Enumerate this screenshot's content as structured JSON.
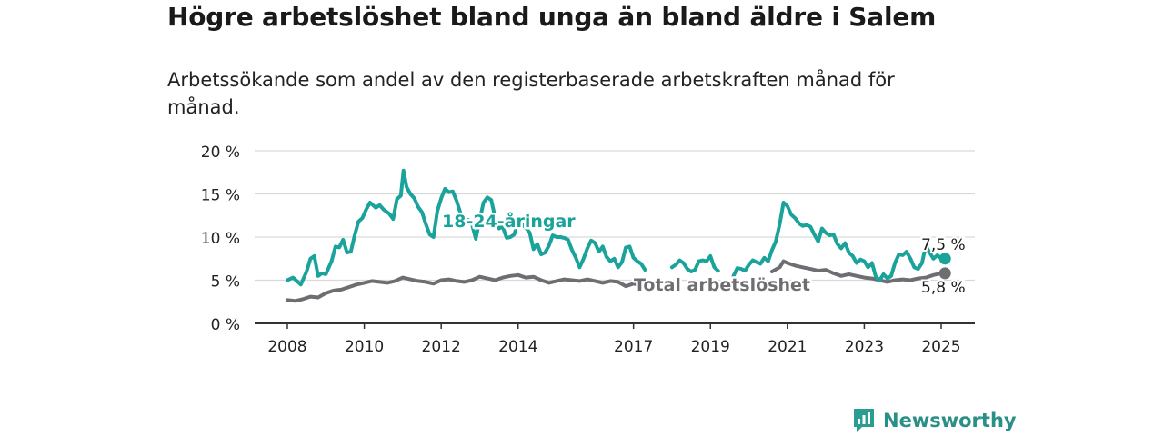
{
  "title": "Högre arbetslöshet bland unga än bland äldre i Salem",
  "subtitle": "Arbetssökande som andel av den registerbaserade arbetskraften månad för månad.",
  "brand": {
    "name": "Newsworthy",
    "color": "#2a9d93"
  },
  "chart_data": {
    "type": "line",
    "ylim": [
      0,
      20
    ],
    "xlim": [
      2008,
      2025.5
    ],
    "y_ticks": [
      0,
      5,
      10,
      15,
      20
    ],
    "y_tick_labels": [
      "0 %",
      "5 %",
      "10 %",
      "15 %",
      "20 %"
    ],
    "x_ticks": [
      2008,
      2010,
      2012,
      2014,
      2017,
      2019,
      2021,
      2023,
      2025
    ],
    "x_tick_labels": [
      "2008",
      "2010",
      "2012",
      "2014",
      "2017",
      "2019",
      "2021",
      "2023",
      "2025"
    ],
    "grid": "horizontal",
    "series": [
      {
        "name": "18-24-åringar",
        "color": "#1aa39a",
        "end_label": "7,5 %",
        "points": [
          [
            2008.0,
            5.0
          ],
          [
            2008.15,
            5.3
          ],
          [
            2008.35,
            4.5
          ],
          [
            2008.5,
            6.0
          ],
          [
            2008.6,
            7.5
          ],
          [
            2008.7,
            7.8
          ],
          [
            2008.8,
            5.5
          ],
          [
            2008.9,
            5.8
          ],
          [
            2009.0,
            5.7
          ],
          [
            2009.15,
            7.2
          ],
          [
            2009.25,
            8.9
          ],
          [
            2009.35,
            8.8
          ],
          [
            2009.45,
            9.7
          ],
          [
            2009.55,
            8.2
          ],
          [
            2009.65,
            8.3
          ],
          [
            2009.75,
            10.2
          ],
          [
            2009.85,
            11.8
          ],
          [
            2009.95,
            12.2
          ],
          [
            2010.05,
            13.2
          ],
          [
            2010.15,
            14.0
          ],
          [
            2010.3,
            13.4
          ],
          [
            2010.4,
            13.7
          ],
          [
            2010.5,
            13.2
          ],
          [
            2010.65,
            12.7
          ],
          [
            2010.75,
            12.1
          ],
          [
            2010.85,
            14.4
          ],
          [
            2010.95,
            14.8
          ],
          [
            2011.02,
            17.7
          ],
          [
            2011.1,
            15.8
          ],
          [
            2011.2,
            15.0
          ],
          [
            2011.3,
            14.5
          ],
          [
            2011.4,
            13.5
          ],
          [
            2011.5,
            12.9
          ],
          [
            2011.6,
            11.5
          ],
          [
            2011.7,
            10.3
          ],
          [
            2011.8,
            10.0
          ],
          [
            2011.9,
            13.0
          ],
          [
            2012.0,
            14.5
          ],
          [
            2012.1,
            15.6
          ],
          [
            2012.2,
            15.2
          ],
          [
            2012.3,
            15.3
          ],
          [
            2012.4,
            14.2
          ],
          [
            2012.5,
            12.8
          ],
          [
            2012.6,
            12.0
          ],
          [
            2012.7,
            12.0
          ],
          [
            2012.8,
            11.5
          ],
          [
            2012.9,
            9.8
          ],
          [
            2013.0,
            12.0
          ],
          [
            2013.1,
            14.0
          ],
          [
            2013.2,
            14.6
          ],
          [
            2013.3,
            14.3
          ],
          [
            2013.4,
            12.3
          ],
          [
            2013.5,
            11.0
          ],
          [
            2013.6,
            11.2
          ],
          [
            2013.7,
            9.9
          ],
          [
            2013.8,
            10.0
          ],
          [
            2013.9,
            10.3
          ],
          [
            2014.0,
            11.8
          ],
          [
            2014.1,
            11.5
          ],
          [
            2014.2,
            11.1
          ],
          [
            2014.3,
            10.5
          ],
          [
            2014.4,
            8.6
          ],
          [
            2014.5,
            9.2
          ],
          [
            2014.6,
            8.0
          ],
          [
            2014.7,
            8.2
          ],
          [
            2014.8,
            9.0
          ],
          [
            2014.9,
            10.2
          ],
          [
            2015.0,
            10.0
          ],
          [
            2015.1,
            10.0
          ],
          [
            2015.2,
            9.9
          ],
          [
            2015.3,
            9.7
          ],
          [
            2015.4,
            8.5
          ],
          [
            2015.5,
            7.6
          ],
          [
            2015.6,
            6.5
          ],
          [
            2015.7,
            7.5
          ],
          [
            2015.8,
            8.7
          ],
          [
            2015.9,
            9.6
          ],
          [
            2016.0,
            9.3
          ],
          [
            2016.1,
            8.3
          ],
          [
            2016.2,
            8.9
          ],
          [
            2016.3,
            7.7
          ],
          [
            2016.4,
            7.2
          ],
          [
            2016.5,
            7.5
          ],
          [
            2016.6,
            6.5
          ],
          [
            2016.7,
            7.1
          ],
          [
            2016.8,
            8.8
          ],
          [
            2016.9,
            8.9
          ],
          [
            2017.0,
            7.6
          ],
          [
            2017.1,
            7.2
          ],
          [
            2017.2,
            6.9
          ],
          [
            2017.3,
            6.2
          ]
        ],
        "points_b": [
          [
            2018.0,
            6.5
          ],
          [
            2018.1,
            6.8
          ],
          [
            2018.2,
            7.3
          ],
          [
            2018.3,
            7.0
          ],
          [
            2018.4,
            6.3
          ],
          [
            2018.5,
            6.0
          ],
          [
            2018.6,
            6.2
          ],
          [
            2018.7,
            7.2
          ],
          [
            2018.8,
            7.3
          ],
          [
            2018.9,
            7.2
          ],
          [
            2019.0,
            7.8
          ],
          [
            2019.1,
            6.5
          ],
          [
            2019.2,
            6.1
          ]
        ],
        "points_c": [
          [
            2019.6,
            5.5
          ],
          [
            2019.7,
            6.4
          ],
          [
            2019.8,
            6.3
          ],
          [
            2019.9,
            6.1
          ],
          [
            2020.0,
            6.8
          ],
          [
            2020.1,
            7.3
          ],
          [
            2020.2,
            7.1
          ],
          [
            2020.3,
            6.9
          ],
          [
            2020.4,
            7.6
          ],
          [
            2020.5,
            7.2
          ],
          [
            2020.6,
            8.5
          ],
          [
            2020.7,
            9.5
          ],
          [
            2020.8,
            11.5
          ],
          [
            2020.9,
            14.0
          ],
          [
            2021.0,
            13.6
          ],
          [
            2021.1,
            12.6
          ],
          [
            2021.2,
            12.2
          ],
          [
            2021.3,
            11.6
          ],
          [
            2021.4,
            11.3
          ],
          [
            2021.5,
            11.4
          ],
          [
            2021.6,
            11.2
          ],
          [
            2021.7,
            10.3
          ],
          [
            2021.8,
            9.5
          ],
          [
            2021.9,
            11.0
          ],
          [
            2022.0,
            10.5
          ],
          [
            2022.1,
            10.2
          ],
          [
            2022.2,
            10.3
          ],
          [
            2022.3,
            9.2
          ],
          [
            2022.4,
            8.7
          ],
          [
            2022.5,
            9.3
          ],
          [
            2022.6,
            8.2
          ],
          [
            2022.7,
            7.8
          ],
          [
            2022.8,
            7.0
          ],
          [
            2022.9,
            7.4
          ],
          [
            2023.0,
            7.2
          ],
          [
            2023.1,
            6.5
          ],
          [
            2023.2,
            7.0
          ],
          [
            2023.3,
            5.4
          ],
          [
            2023.4,
            5.0
          ],
          [
            2023.5,
            5.7
          ],
          [
            2023.6,
            5.2
          ],
          [
            2023.7,
            5.5
          ],
          [
            2023.8,
            7.0
          ],
          [
            2023.9,
            8.0
          ],
          [
            2024.0,
            7.9
          ],
          [
            2024.1,
            8.3
          ],
          [
            2024.2,
            7.5
          ],
          [
            2024.3,
            6.5
          ],
          [
            2024.4,
            6.3
          ],
          [
            2024.5,
            7.0
          ],
          [
            2024.6,
            9.0
          ],
          [
            2024.7,
            8.2
          ],
          [
            2024.8,
            7.5
          ],
          [
            2024.9,
            7.9
          ],
          [
            2025.0,
            7.5
          ],
          [
            2025.1,
            7.5
          ]
        ]
      },
      {
        "name": "Total arbetslöshet",
        "color": "#6e6d72",
        "end_label": "5,8 %",
        "points": [
          [
            2008.0,
            2.7
          ],
          [
            2008.2,
            2.6
          ],
          [
            2008.4,
            2.8
          ],
          [
            2008.6,
            3.1
          ],
          [
            2008.8,
            3.0
          ],
          [
            2009.0,
            3.5
          ],
          [
            2009.2,
            3.8
          ],
          [
            2009.4,
            3.9
          ],
          [
            2009.6,
            4.2
          ],
          [
            2009.8,
            4.5
          ],
          [
            2010.0,
            4.7
          ],
          [
            2010.2,
            4.9
          ],
          [
            2010.4,
            4.8
          ],
          [
            2010.6,
            4.7
          ],
          [
            2010.8,
            4.9
          ],
          [
            2011.0,
            5.3
          ],
          [
            2011.2,
            5.1
          ],
          [
            2011.4,
            4.9
          ],
          [
            2011.6,
            4.8
          ],
          [
            2011.8,
            4.6
          ],
          [
            2012.0,
            5.0
          ],
          [
            2012.2,
            5.1
          ],
          [
            2012.4,
            4.9
          ],
          [
            2012.6,
            4.8
          ],
          [
            2012.8,
            5.0
          ],
          [
            2013.0,
            5.4
          ],
          [
            2013.2,
            5.2
          ],
          [
            2013.4,
            5.0
          ],
          [
            2013.6,
            5.3
          ],
          [
            2013.8,
            5.5
          ],
          [
            2014.0,
            5.6
          ],
          [
            2014.2,
            5.3
          ],
          [
            2014.4,
            5.4
          ],
          [
            2014.6,
            5.0
          ],
          [
            2014.8,
            4.7
          ],
          [
            2015.0,
            4.9
          ],
          [
            2015.2,
            5.1
          ],
          [
            2015.4,
            5.0
          ],
          [
            2015.6,
            4.9
          ],
          [
            2015.8,
            5.1
          ],
          [
            2016.0,
            4.9
          ],
          [
            2016.2,
            4.7
          ],
          [
            2016.4,
            4.9
          ],
          [
            2016.6,
            4.8
          ],
          [
            2016.8,
            4.3
          ],
          [
            2017.0,
            4.6
          ],
          [
            2017.2,
            4.4
          ],
          [
            2017.4,
            4.2
          ]
        ],
        "points_c": [
          [
            2020.6,
            6.0
          ],
          [
            2020.8,
            6.5
          ],
          [
            2020.9,
            7.2
          ],
          [
            2021.0,
            7.0
          ],
          [
            2021.2,
            6.7
          ],
          [
            2021.4,
            6.5
          ],
          [
            2021.6,
            6.3
          ],
          [
            2021.8,
            6.1
          ],
          [
            2022.0,
            6.2
          ],
          [
            2022.2,
            5.8
          ],
          [
            2022.4,
            5.5
          ],
          [
            2022.6,
            5.7
          ],
          [
            2022.8,
            5.5
          ],
          [
            2023.0,
            5.3
          ],
          [
            2023.2,
            5.2
          ],
          [
            2023.4,
            5.0
          ],
          [
            2023.6,
            4.8
          ],
          [
            2023.8,
            5.0
          ],
          [
            2024.0,
            5.1
          ],
          [
            2024.2,
            5.0
          ],
          [
            2024.4,
            5.2
          ],
          [
            2024.6,
            5.3
          ],
          [
            2024.8,
            5.6
          ],
          [
            2025.0,
            5.8
          ],
          [
            2025.1,
            5.8
          ]
        ]
      }
    ]
  }
}
